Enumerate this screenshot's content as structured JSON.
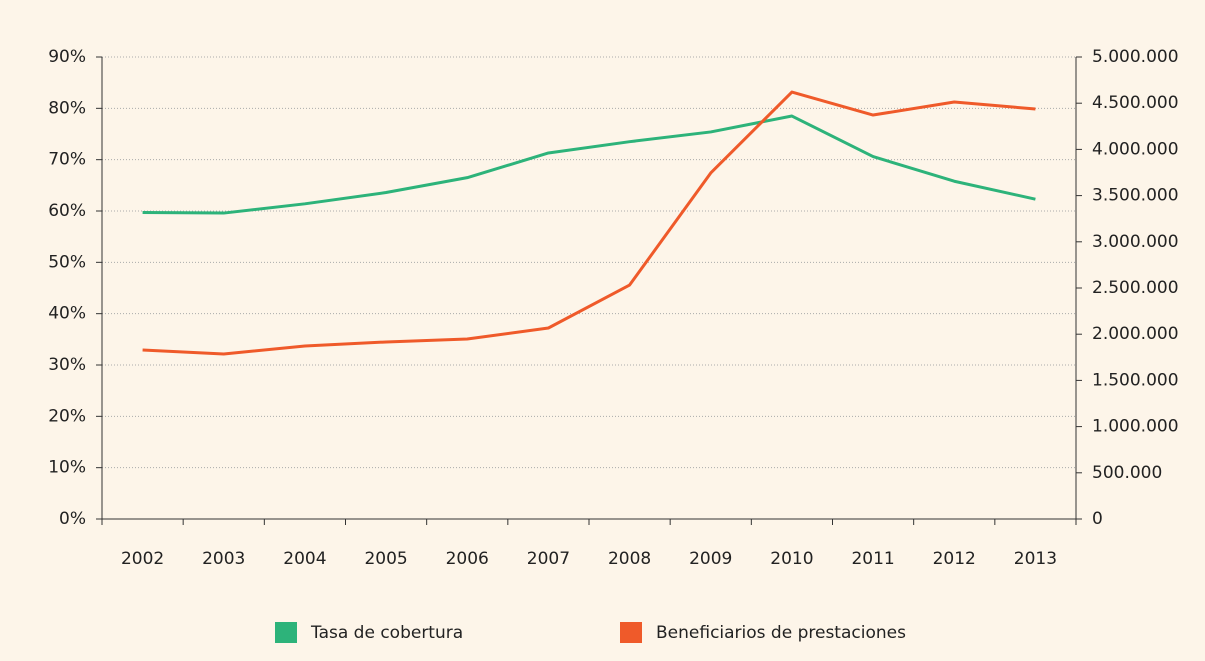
{
  "chart_data": {
    "type": "line",
    "categories": [
      "2002",
      "2003",
      "2004",
      "2005",
      "2006",
      "2007",
      "2008",
      "2009",
      "2010",
      "2011",
      "2012",
      "2013"
    ],
    "series": [
      {
        "name": "Tasa de cobertura",
        "color": "#2db37a",
        "axis": "y",
        "values": [
          59.7,
          59.6,
          61.4,
          63.6,
          66.5,
          71.3,
          73.5,
          75.4,
          78.5,
          70.6,
          65.8,
          62.3
        ]
      },
      {
        "name": "Beneficiarios de prestaciones",
        "color": "#ef5a2a",
        "axis": "y2",
        "values": [
          1829000,
          1786000,
          1872000,
          1916000,
          1948000,
          2067000,
          2532000,
          3745000,
          4621000,
          4372000,
          4513000,
          4437000
        ]
      }
    ],
    "ylim": [
      0,
      90
    ],
    "yticks": [
      {
        "value": 0,
        "label": "0%"
      },
      {
        "value": 10,
        "label": "10%"
      },
      {
        "value": 20,
        "label": "20%"
      },
      {
        "value": 30,
        "label": "30%"
      },
      {
        "value": 40,
        "label": "40%"
      },
      {
        "value": 50,
        "label": "50%"
      },
      {
        "value": 60,
        "label": "60%"
      },
      {
        "value": 70,
        "label": "70%"
      },
      {
        "value": 80,
        "label": "80%"
      },
      {
        "value": 90,
        "label": "90%"
      }
    ],
    "y2lim": [
      0,
      5000000
    ],
    "y2ticks": [
      0,
      {
        "value": 500000,
        "label": "500.000"
      },
      {
        "value": 1000000,
        "label": "1.000.000"
      },
      {
        "value": 1500000,
        "label": "1.500.000"
      },
      {
        "value": 2000000,
        "label": "2.000.000"
      },
      {
        "value": 2500000,
        "label": "2.500.000"
      },
      {
        "value": 3000000,
        "label": "3.000.000"
      },
      {
        "value": 3500000,
        "label": "3.500.000"
      },
      {
        "value": 4000000,
        "label": "4.000.000"
      },
      {
        "value": 4500000,
        "label": "4.500.000"
      },
      {
        "value": 5000000,
        "label": "5.000.000"
      }
    ],
    "grid": true,
    "legend": "bottom"
  }
}
